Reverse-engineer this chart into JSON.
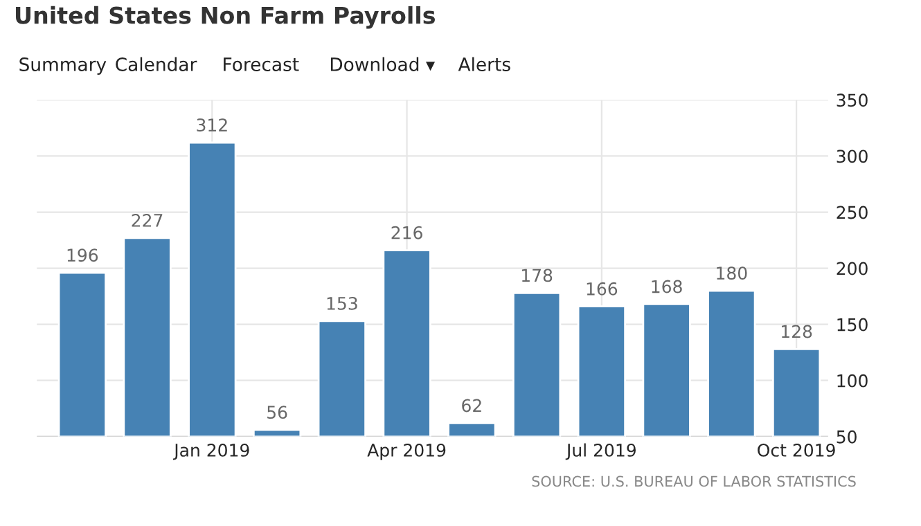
{
  "chart_data": {
    "type": "bar",
    "title": "United States Non Farm Payrolls",
    "annotations": [
      "Summary",
      "Calendar",
      "Forecast",
      "Download ▾",
      "Alerts",
      "SOURCE: U.S. BUREAU OF LABOR STATISTICS"
    ],
    "categories": [
      null,
      null,
      "Jan 2019",
      null,
      null,
      "Apr 2019",
      null,
      null,
      "Jul 2019",
      null,
      null,
      "Oct 2019"
    ],
    "values": [
      196,
      227,
      312,
      56,
      153,
      216,
      62,
      178,
      166,
      168,
      180,
      128
    ],
    "color": "#4682b4",
    "data_labels": true,
    "ylim": [
      50,
      350
    ],
    "yticks": [
      50,
      100,
      150,
      200,
      250,
      300,
      350
    ],
    "grid": true
  }
}
